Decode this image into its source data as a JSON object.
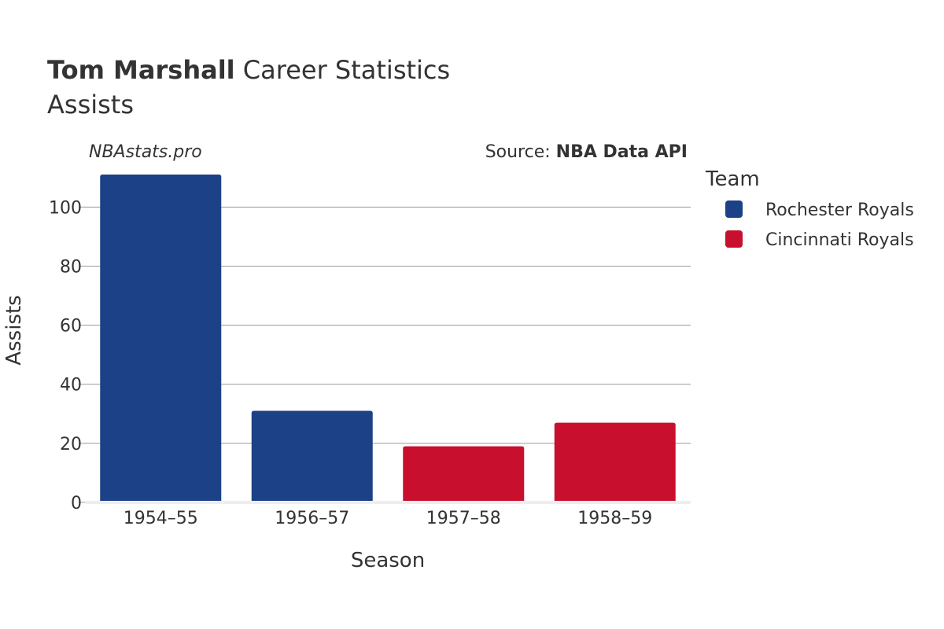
{
  "header": {
    "title_bold": "Tom Marshall",
    "title_rest": " Career Statistics",
    "subtitle": "Assists",
    "watermark": "NBAstats.pro",
    "source_prefix": "Source: ",
    "source_name": "NBA Data API"
  },
  "legend": {
    "title": "Team",
    "items": [
      {
        "label": "Rochester Royals",
        "color": "#1c4186"
      },
      {
        "label": "Cincinnati Royals",
        "color": "#c8102e"
      }
    ]
  },
  "chart_data": {
    "type": "bar",
    "title": "Tom Marshall Career Statistics",
    "subtitle": "Assists",
    "xlabel": "Season",
    "ylabel": "Assists",
    "categories": [
      "1954–55",
      "1956–57",
      "1957–58",
      "1958–59"
    ],
    "values": [
      111,
      31,
      19,
      27
    ],
    "teams": [
      "Rochester Royals",
      "Rochester Royals",
      "Cincinnati Royals",
      "Cincinnati Royals"
    ],
    "colors": [
      "#1c4186",
      "#1c4186",
      "#c8102e",
      "#c8102e"
    ],
    "ylim": [
      0,
      111
    ],
    "yticks": [
      0,
      20,
      40,
      60,
      80,
      100
    ],
    "grid": true,
    "legend_position": "right"
  }
}
